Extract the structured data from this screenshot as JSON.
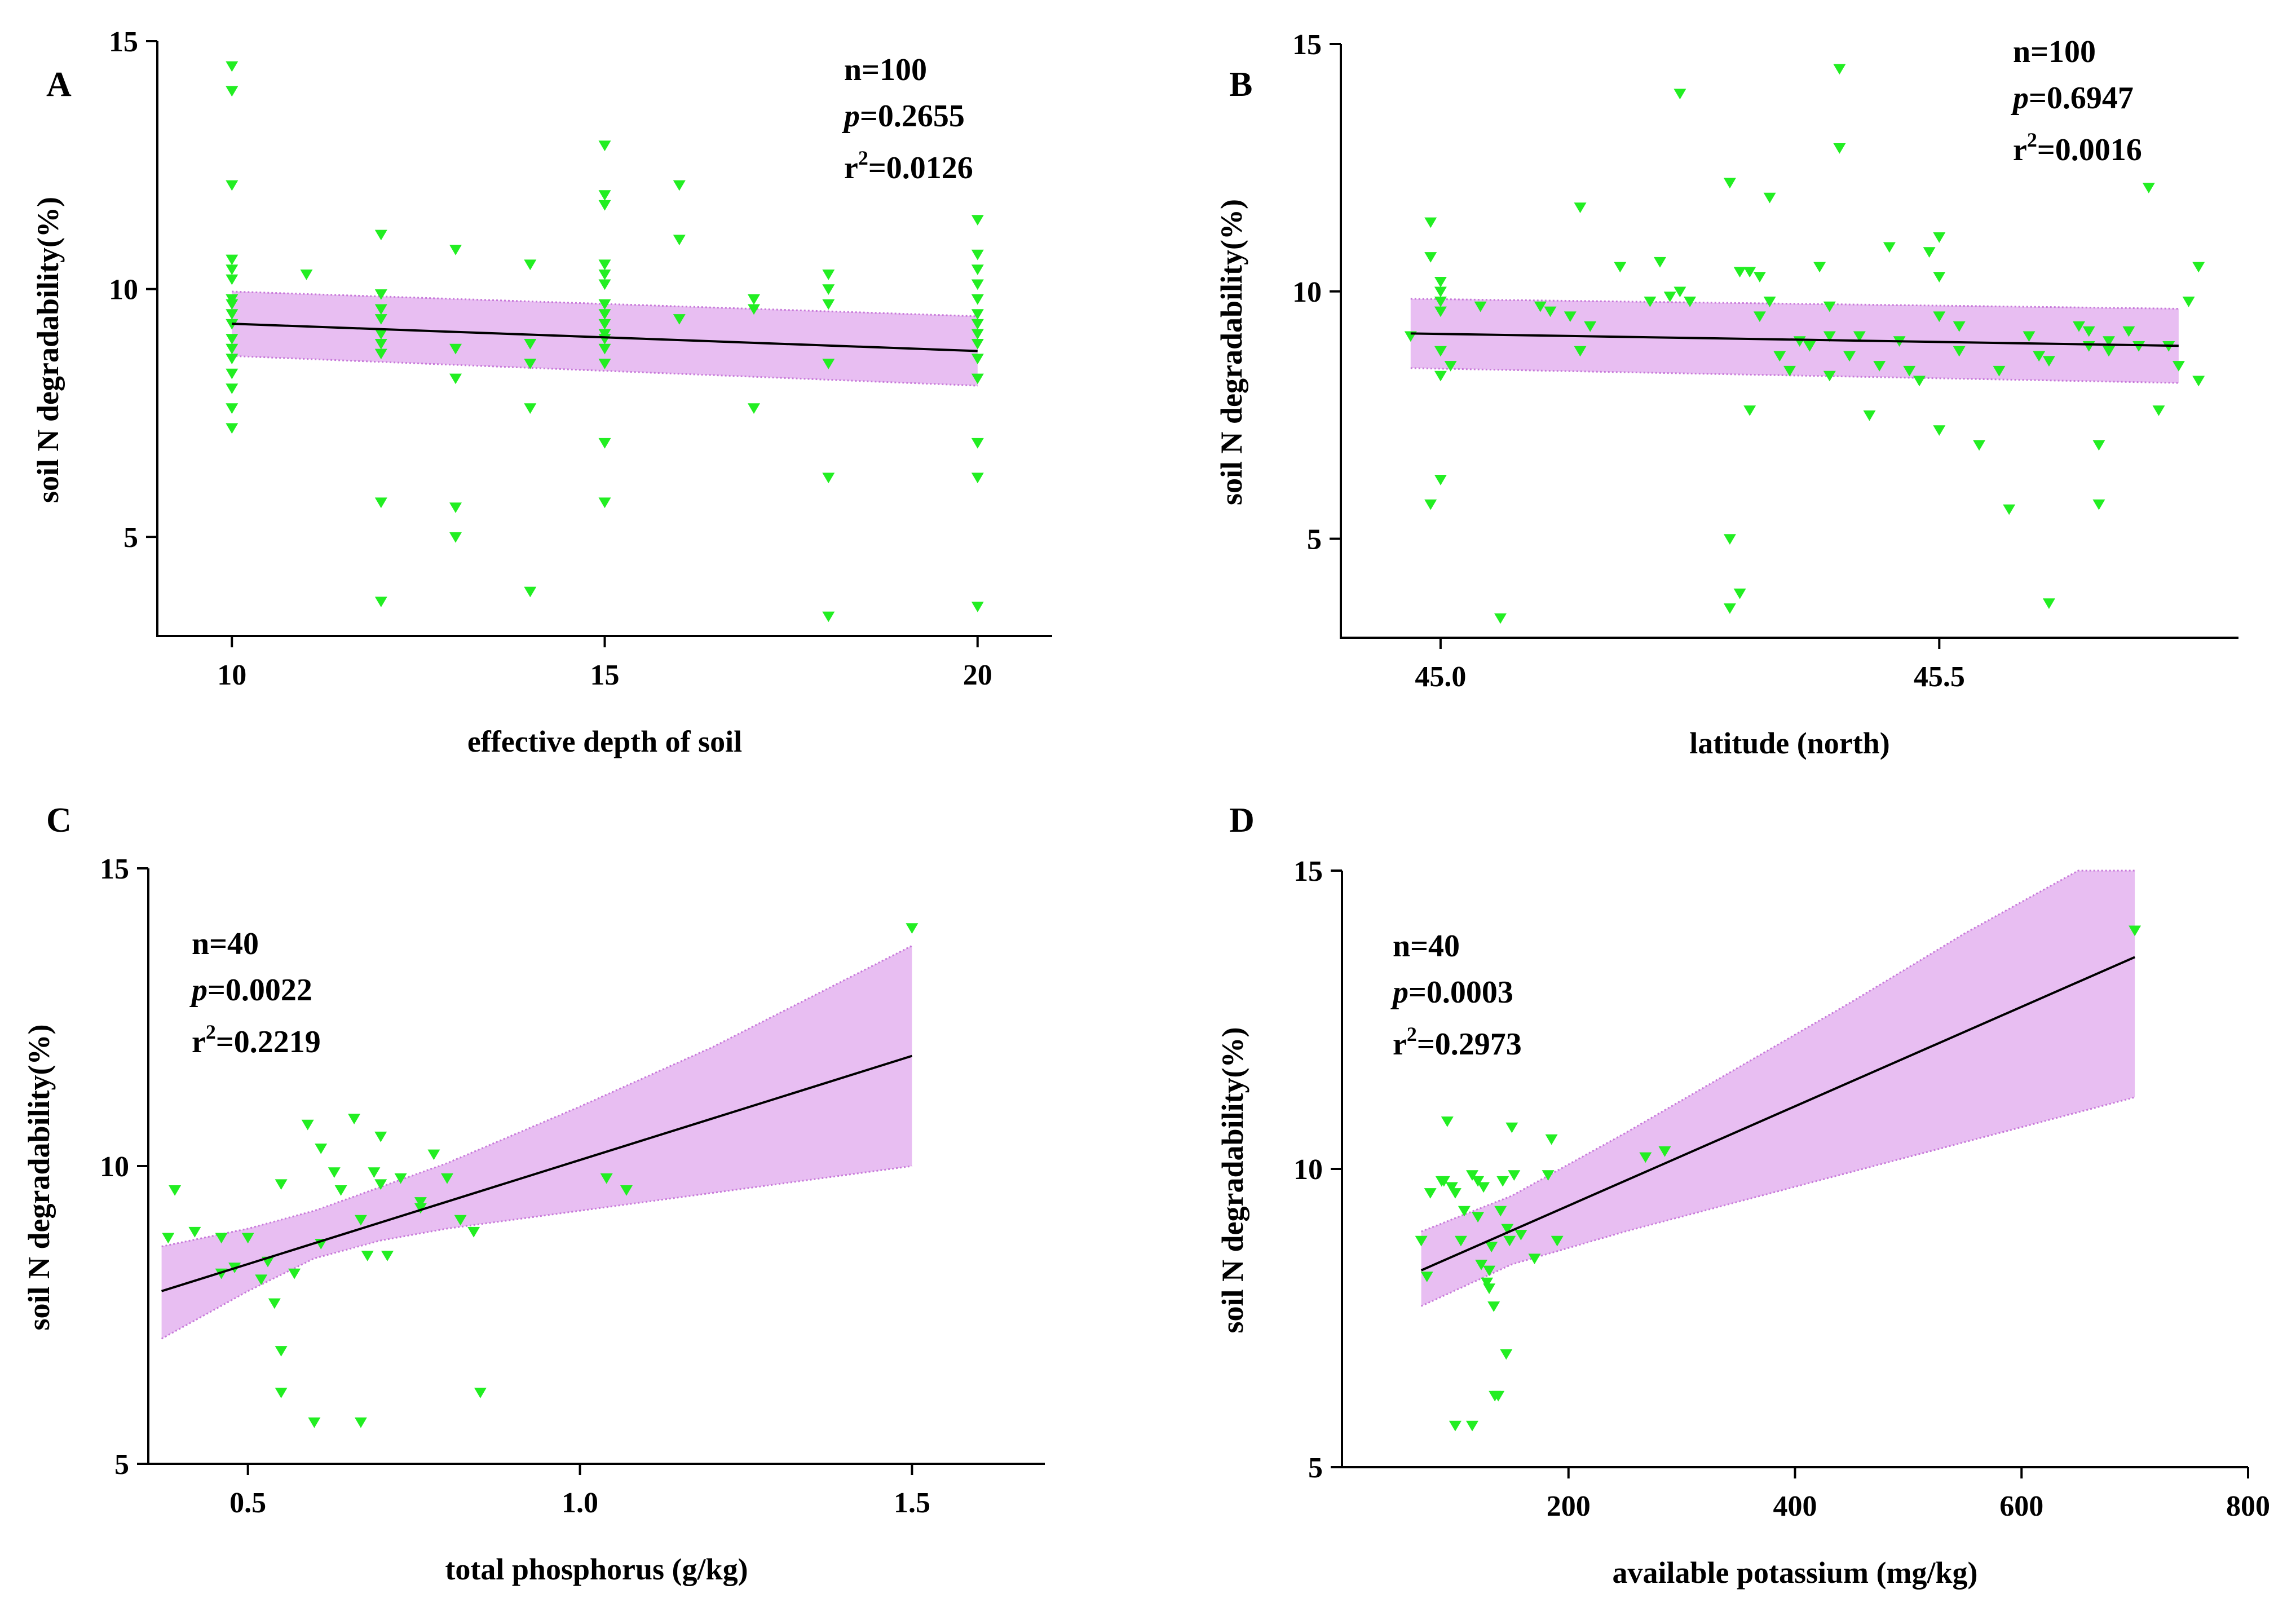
{
  "colors": {
    "background": "#ffffff",
    "points": "#22ee22",
    "band_fill": "#e8bef2",
    "band_edge": "#c779d9",
    "fit_line": "#000000",
    "axis": "#000000"
  },
  "chart_data": [
    {
      "panel": "A",
      "type": "scatter",
      "xlabel": "effective depth of soil",
      "ylabel": "soil N degradability(%)",
      "xlim": [
        9,
        21
      ],
      "ylim": [
        3,
        15
      ],
      "xticks": [
        10,
        15,
        20
      ],
      "xtick_labels": [
        "10",
        "15",
        "20"
      ],
      "yticks": [
        5,
        10,
        15
      ],
      "ytick_labels": [
        "5",
        "10",
        "15"
      ],
      "stats": {
        "n": "n=100",
        "p_symbol": "p",
        "p_value": "=0.2655",
        "r2_base": "r",
        "r2_sup": "2",
        "r2_value": "=0.0126"
      },
      "stats_position": "top-right",
      "fit": {
        "x": [
          10,
          20
        ],
        "y": [
          9.3,
          8.75
        ]
      },
      "band": {
        "x": [
          10,
          20
        ],
        "upper": [
          9.95,
          9.45
        ],
        "lower": [
          8.65,
          8.05
        ]
      },
      "points": [
        [
          10,
          14.5
        ],
        [
          10,
          14.0
        ],
        [
          10,
          12.1
        ],
        [
          10,
          10.6
        ],
        [
          10,
          10.4
        ],
        [
          10,
          10.2
        ],
        [
          10,
          9.8
        ],
        [
          10,
          9.7
        ],
        [
          10,
          9.5
        ],
        [
          10,
          9.3
        ],
        [
          10,
          9.0
        ],
        [
          10,
          8.8
        ],
        [
          10,
          8.6
        ],
        [
          10,
          8.3
        ],
        [
          10,
          8.0
        ],
        [
          10,
          7.6
        ],
        [
          10,
          7.2
        ],
        [
          11,
          10.3
        ],
        [
          12,
          11.1
        ],
        [
          12,
          9.9
        ],
        [
          12,
          9.6
        ],
        [
          12,
          9.4
        ],
        [
          12,
          9.1
        ],
        [
          12,
          8.9
        ],
        [
          12,
          8.7
        ],
        [
          12,
          5.7
        ],
        [
          12,
          3.7
        ],
        [
          13,
          10.8
        ],
        [
          13,
          8.8
        ],
        [
          13,
          8.2
        ],
        [
          13,
          5.6
        ],
        [
          13,
          5.0
        ],
        [
          14,
          10.5
        ],
        [
          14,
          8.9
        ],
        [
          14,
          8.5
        ],
        [
          14,
          7.6
        ],
        [
          14,
          3.9
        ],
        [
          15,
          12.9
        ],
        [
          15,
          11.9
        ],
        [
          15,
          11.7
        ],
        [
          15,
          10.5
        ],
        [
          15,
          10.3
        ],
        [
          15,
          10.1
        ],
        [
          15,
          9.7
        ],
        [
          15,
          9.5
        ],
        [
          15,
          9.3
        ],
        [
          15,
          9.1
        ],
        [
          15,
          9.0
        ],
        [
          15,
          8.8
        ],
        [
          15,
          8.5
        ],
        [
          15,
          6.9
        ],
        [
          15,
          5.7
        ],
        [
          16,
          12.1
        ],
        [
          16,
          11.0
        ],
        [
          16,
          9.4
        ],
        [
          17,
          9.8
        ],
        [
          17,
          9.6
        ],
        [
          17,
          7.6
        ],
        [
          18,
          10.3
        ],
        [
          18,
          10.0
        ],
        [
          18,
          9.7
        ],
        [
          18,
          8.5
        ],
        [
          18,
          6.2
        ],
        [
          18,
          3.4
        ],
        [
          20,
          11.4
        ],
        [
          20,
          10.7
        ],
        [
          20,
          10.4
        ],
        [
          20,
          10.1
        ],
        [
          20,
          9.8
        ],
        [
          20,
          9.5
        ],
        [
          20,
          9.3
        ],
        [
          20,
          9.1
        ],
        [
          20,
          8.9
        ],
        [
          20,
          8.6
        ],
        [
          20,
          8.2
        ],
        [
          20,
          6.9
        ],
        [
          20,
          6.2
        ],
        [
          20,
          3.6
        ]
      ]
    },
    {
      "panel": "B",
      "type": "scatter",
      "xlabel": "latitude (north)",
      "ylabel": "soil N degradability(%)",
      "xlim": [
        44.9,
        45.8
      ],
      "ylim": [
        3,
        15
      ],
      "xticks": [
        45.0,
        45.5
      ],
      "xtick_labels": [
        "45.0",
        "45.5"
      ],
      "yticks": [
        5,
        10,
        15
      ],
      "ytick_labels": [
        "5",
        "10",
        "15"
      ],
      "stats": {
        "n": "n=100",
        "p_symbol": "p",
        "p_value": "=0.6947",
        "r2_base": "r",
        "r2_sup": "2",
        "r2_value": "=0.0016"
      },
      "stats_position": "top-right",
      "fit": {
        "x": [
          44.97,
          45.74
        ],
        "y": [
          9.15,
          8.9
        ]
      },
      "band": {
        "x": [
          44.97,
          45.74
        ],
        "upper": [
          9.85,
          9.65
        ],
        "lower": [
          8.45,
          8.15
        ]
      },
      "points": [
        [
          44.97,
          9.1
        ],
        [
          44.99,
          11.4
        ],
        [
          44.99,
          10.7
        ],
        [
          45.0,
          10.2
        ],
        [
          45.0,
          10.0
        ],
        [
          45.0,
          9.6
        ],
        [
          45.0,
          8.8
        ],
        [
          45.0,
          8.3
        ],
        [
          45.0,
          6.2
        ],
        [
          44.99,
          5.7
        ],
        [
          45.01,
          8.5
        ],
        [
          45.0,
          9.8
        ],
        [
          45.04,
          9.7
        ],
        [
          45.06,
          3.4
        ],
        [
          45.1,
          9.7
        ],
        [
          45.11,
          9.6
        ],
        [
          45.13,
          9.5
        ],
        [
          45.14,
          8.8
        ],
        [
          45.14,
          11.7
        ],
        [
          45.15,
          9.3
        ],
        [
          45.18,
          10.5
        ],
        [
          45.21,
          9.8
        ],
        [
          45.22,
          10.6
        ],
        [
          45.23,
          9.9
        ],
        [
          45.24,
          10.0
        ],
        [
          45.24,
          14.0
        ],
        [
          45.25,
          9.8
        ],
        [
          45.29,
          12.2
        ],
        [
          45.3,
          10.4
        ],
        [
          45.29,
          5.0
        ],
        [
          45.29,
          3.6
        ],
        [
          45.3,
          3.9
        ],
        [
          45.31,
          7.6
        ],
        [
          45.31,
          10.4
        ],
        [
          45.32,
          10.3
        ],
        [
          45.32,
          9.5
        ],
        [
          45.33,
          11.9
        ],
        [
          45.33,
          9.8
        ],
        [
          45.34,
          8.7
        ],
        [
          45.35,
          8.4
        ],
        [
          45.36,
          9.0
        ],
        [
          45.37,
          8.9
        ],
        [
          45.38,
          10.5
        ],
        [
          45.39,
          9.7
        ],
        [
          45.39,
          8.3
        ],
        [
          45.39,
          9.1
        ],
        [
          45.4,
          12.9
        ],
        [
          45.4,
          14.5
        ],
        [
          45.41,
          8.7
        ],
        [
          45.42,
          9.1
        ],
        [
          45.43,
          7.5
        ],
        [
          45.44,
          8.5
        ],
        [
          45.45,
          10.9
        ],
        [
          45.46,
          9.0
        ],
        [
          45.47,
          8.4
        ],
        [
          45.48,
          8.2
        ],
        [
          45.49,
          10.8
        ],
        [
          45.5,
          11.1
        ],
        [
          45.5,
          10.3
        ],
        [
          45.5,
          9.5
        ],
        [
          45.5,
          7.2
        ],
        [
          45.52,
          9.3
        ],
        [
          45.52,
          8.8
        ],
        [
          45.54,
          6.9
        ],
        [
          45.56,
          8.4
        ],
        [
          45.57,
          5.6
        ],
        [
          45.59,
          9.1
        ],
        [
          45.6,
          8.7
        ],
        [
          45.61,
          8.6
        ],
        [
          45.61,
          3.7
        ],
        [
          45.64,
          9.3
        ],
        [
          45.65,
          9.2
        ],
        [
          45.65,
          8.9
        ],
        [
          45.66,
          6.9
        ],
        [
          45.66,
          5.7
        ],
        [
          45.67,
          8.8
        ],
        [
          45.67,
          9.0
        ],
        [
          45.69,
          9.2
        ],
        [
          45.7,
          8.9
        ],
        [
          45.71,
          12.1
        ],
        [
          45.72,
          7.6
        ],
        [
          45.73,
          8.9
        ],
        [
          45.74,
          8.5
        ],
        [
          45.75,
          9.8
        ],
        [
          45.76,
          10.5
        ],
        [
          45.76,
          8.2
        ]
      ]
    },
    {
      "panel": "C",
      "type": "scatter",
      "xlabel": "total phosphorus (g/kg)",
      "ylabel": "soil N degradability(%)",
      "xlim": [
        0.35,
        1.7
      ],
      "ylim": [
        5,
        15
      ],
      "xticks": [
        0.5,
        1.0,
        1.5
      ],
      "xtick_labels": [
        "0.5",
        "1.0",
        "1.5"
      ],
      "yticks": [
        5,
        10,
        15
      ],
      "ytick_labels": [
        "5",
        "10",
        "15"
      ],
      "stats": {
        "n": "n=40",
        "p_symbol": "p",
        "p_value": "=0.0022",
        "r2_base": "r",
        "r2_sup": "2",
        "r2_value": "=0.2219"
      },
      "stats_position": "top-left",
      "fit": {
        "x": [
          0.37,
          1.5
        ],
        "y": [
          7.9,
          11.85
        ]
      },
      "band": {
        "x": [
          0.37,
          0.5,
          0.6,
          0.7,
          0.8,
          1.0,
          1.2,
          1.5
        ],
        "upper": [
          8.65,
          8.95,
          9.25,
          9.65,
          10.05,
          11.0,
          12.0,
          13.7
        ],
        "lower": [
          7.1,
          7.9,
          8.45,
          8.75,
          8.95,
          9.25,
          9.55,
          10.0
        ]
      },
      "points": [
        [
          0.38,
          8.8
        ],
        [
          0.39,
          9.6
        ],
        [
          0.42,
          8.9
        ],
        [
          0.46,
          8.2
        ],
        [
          0.46,
          8.8
        ],
        [
          0.48,
          8.3
        ],
        [
          0.5,
          8.8
        ],
        [
          0.52,
          8.1
        ],
        [
          0.53,
          8.4
        ],
        [
          0.54,
          7.7
        ],
        [
          0.55,
          6.2
        ],
        [
          0.55,
          6.9
        ],
        [
          0.55,
          9.7
        ],
        [
          0.57,
          8.2
        ],
        [
          0.59,
          10.7
        ],
        [
          0.6,
          5.7
        ],
        [
          0.61,
          10.3
        ],
        [
          0.61,
          8.7
        ],
        [
          0.63,
          9.9
        ],
        [
          0.64,
          9.6
        ],
        [
          0.66,
          10.8
        ],
        [
          0.67,
          9.1
        ],
        [
          0.67,
          5.7
        ],
        [
          0.68,
          8.5
        ],
        [
          0.69,
          9.9
        ],
        [
          0.7,
          10.5
        ],
        [
          0.7,
          9.7
        ],
        [
          0.71,
          8.5
        ],
        [
          0.73,
          9.8
        ],
        [
          0.76,
          9.3
        ],
        [
          0.76,
          9.4
        ],
        [
          0.78,
          10.2
        ],
        [
          0.8,
          9.8
        ],
        [
          0.82,
          9.1
        ],
        [
          0.84,
          8.9
        ],
        [
          0.85,
          6.2
        ],
        [
          1.04,
          9.8
        ],
        [
          1.07,
          9.6
        ],
        [
          1.5,
          14.0
        ]
      ]
    },
    {
      "panel": "D",
      "type": "scatter",
      "xlabel": "available potassium (mg/kg)",
      "ylabel": "soil N degradability(%)",
      "xlim": [
        0,
        800
      ],
      "ylim": [
        5,
        15
      ],
      "xticks": [
        200,
        400,
        600,
        800
      ],
      "xtick_labels": [
        "200",
        "400",
        "600",
        "800"
      ],
      "yticks": [
        5,
        10,
        15
      ],
      "ytick_labels": [
        "5",
        "10",
        "15"
      ],
      "stats": {
        "n": "n=40",
        "p_symbol": "p",
        "p_value": "=0.0003",
        "r2_base": "r",
        "r2_sup": "2",
        "r2_value": "=0.2973"
      },
      "stats_position": "top-left",
      "fit": {
        "x": [
          70,
          700
        ],
        "y": [
          8.3,
          13.55
        ]
      },
      "band": {
        "x": [
          70,
          150,
          250,
          350,
          450,
          550,
          650,
          700
        ],
        "upper": [
          8.95,
          9.55,
          10.6,
          11.7,
          12.8,
          13.95,
          15.0,
          15.0
        ],
        "lower": [
          7.7,
          8.4,
          8.95,
          9.45,
          9.95,
          10.45,
          10.95,
          11.2
        ]
      },
      "points": [
        [
          70,
          8.8
        ],
        [
          75,
          8.2
        ],
        [
          78,
          9.6
        ],
        [
          88,
          9.8
        ],
        [
          90,
          9.8
        ],
        [
          93,
          10.8
        ],
        [
          97,
          9.7
        ],
        [
          100,
          9.6
        ],
        [
          100,
          5.7
        ],
        [
          105,
          8.8
        ],
        [
          108,
          9.3
        ],
        [
          115,
          9.9
        ],
        [
          115,
          5.7
        ],
        [
          120,
          9.8
        ],
        [
          120,
          9.2
        ],
        [
          123,
          8.4
        ],
        [
          125,
          9.7
        ],
        [
          128,
          8.1
        ],
        [
          130,
          8.3
        ],
        [
          130,
          8.0
        ],
        [
          132,
          8.7
        ],
        [
          134,
          7.7
        ],
        [
          135,
          6.2
        ],
        [
          138,
          6.2
        ],
        [
          140,
          9.3
        ],
        [
          142,
          9.8
        ],
        [
          145,
          6.9
        ],
        [
          146,
          9.0
        ],
        [
          148,
          8.8
        ],
        [
          150,
          10.7
        ],
        [
          152,
          9.9
        ],
        [
          158,
          8.9
        ],
        [
          170,
          8.5
        ],
        [
          182,
          9.9
        ],
        [
          185,
          10.5
        ],
        [
          190,
          8.8
        ],
        [
          268,
          10.2
        ],
        [
          285,
          10.3
        ],
        [
          700,
          14.0
        ]
      ]
    }
  ]
}
